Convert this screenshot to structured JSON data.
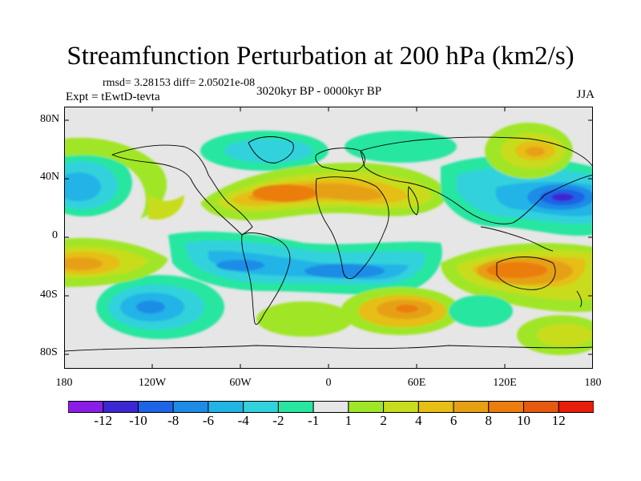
{
  "figure": {
    "title": "Streamfunction Perturbation at 200 hPa (km2/s)",
    "stats": "rmsd= 3.28153  diff= 2.05021e-08",
    "period": "3020kyr BP - 0000kyr BP",
    "experiment": "Expt = tEwtD-tevta",
    "season": "JJA"
  },
  "map": {
    "lat_labels": [
      "80N",
      "40N",
      "0",
      "40S",
      "80S"
    ],
    "lon_labels": [
      "180",
      "120W",
      "60W",
      "0",
      "60E",
      "120E",
      "180"
    ],
    "projection": "cylindrical-equidistant",
    "lat_range": [
      -90,
      90
    ],
    "lon_range": [
      -180,
      180
    ]
  },
  "colorbar": {
    "labels": [
      "-12",
      "-10",
      "-8",
      "-6",
      "-4",
      "-2",
      "-1",
      "1",
      "2",
      "4",
      "6",
      "8",
      "10",
      "12"
    ],
    "colors": [
      "#8a1ee6",
      "#3c28d2",
      "#1e64e6",
      "#1e8ce6",
      "#23b4e6",
      "#32d2dc",
      "#28e6a0",
      "#e6e6e6",
      "#a0e628",
      "#c8dc1e",
      "#e6be14",
      "#e6a014",
      "#eb7d0f",
      "#e65a0f",
      "#e61e0a"
    ]
  },
  "chart_data": {
    "type": "heatmap",
    "title": "Streamfunction Perturbation at 200 hPa (km2/s)",
    "variable": "streamfunction perturbation",
    "units": "km2/s",
    "levels": [
      -12,
      -10,
      -8,
      -6,
      -4,
      -2,
      -1,
      1,
      2,
      4,
      6,
      8,
      10,
      12
    ],
    "features": [
      {
        "lon": 155,
        "lat": 30,
        "value": -10,
        "sign": "negative"
      },
      {
        "lon": -170,
        "lat": 35,
        "value": -6,
        "sign": "negative"
      },
      {
        "lon": 80,
        "lat": 30,
        "value": -4,
        "sign": "negative"
      },
      {
        "lon": -55,
        "lat": 55,
        "value": -2,
        "sign": "negative"
      },
      {
        "lon": -100,
        "lat": -20,
        "value": -4,
        "sign": "negative"
      },
      {
        "lon": 10,
        "lat": -25,
        "value": -6,
        "sign": "negative"
      },
      {
        "lon": -130,
        "lat": -50,
        "value": -6,
        "sign": "negative"
      },
      {
        "lon": -20,
        "lat": 30,
        "value": 10,
        "sign": "positive"
      },
      {
        "lon": 135,
        "lat": -25,
        "value": 10,
        "sign": "positive"
      },
      {
        "lon": -165,
        "lat": -20,
        "value": 8,
        "sign": "positive"
      },
      {
        "lon": 50,
        "lat": -55,
        "value": 8,
        "sign": "positive"
      },
      {
        "lon": 140,
        "lat": 65,
        "value": 6,
        "sign": "positive"
      },
      {
        "lon": -165,
        "lat": 60,
        "value": 2,
        "sign": "positive"
      },
      {
        "lon": 25,
        "lat": -35,
        "value": 2,
        "sign": "positive"
      },
      {
        "lon": -15,
        "lat": 20,
        "value": 4,
        "sign": "positive"
      }
    ]
  }
}
